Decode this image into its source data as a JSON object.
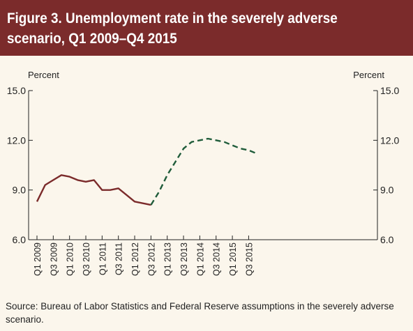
{
  "title": "Figure 3. Unemployment rate in the severely adverse scenario, Q1 2009–Q4 2015",
  "source": "Source: Bureau of Labor Statistics and Federal Reserve assumptions in the severely adverse scenario.",
  "colors": {
    "header_bg": "#7b2b2b",
    "historical": "#7b2b2b",
    "projected": "#1f5c3a",
    "background": "#fbf6ec"
  },
  "chart_data": {
    "type": "line",
    "ylabel_left": "Percent",
    "ylabel_right": "Percent",
    "ylim": [
      6.0,
      15.0
    ],
    "yticks": [
      "6.0",
      "9.0",
      "12.0",
      "15.0"
    ],
    "tick_labels": [
      "Q1 2009",
      "Q3 2009",
      "Q1 2010",
      "Q3 2010",
      "Q1 2011",
      "Q3 2011",
      "Q1 2012",
      "Q3 2012",
      "Q1 2013",
      "Q3 2013",
      "Q1 2014",
      "Q3 2014",
      "Q1 2015",
      "Q3 2015"
    ],
    "grid": false,
    "series": [
      {
        "style": "solid",
        "x": [
          "Q1 2009",
          "Q2 2009",
          "Q3 2009",
          "Q4 2009",
          "Q1 2010",
          "Q2 2010",
          "Q3 2010",
          "Q4 2010",
          "Q1 2011",
          "Q2 2011",
          "Q3 2011",
          "Q4 2011",
          "Q1 2012",
          "Q2 2012",
          "Q3 2012"
        ],
        "values": [
          8.3,
          9.3,
          9.6,
          9.9,
          9.8,
          9.6,
          9.5,
          9.6,
          9.0,
          9.0,
          9.1,
          8.7,
          8.3,
          8.2,
          8.1
        ]
      },
      {
        "style": "dashed",
        "x": [
          "Q3 2012",
          "Q4 2012",
          "Q1 2013",
          "Q2 2013",
          "Q3 2013",
          "Q4 2013",
          "Q1 2014",
          "Q2 2014",
          "Q3 2014",
          "Q4 2014",
          "Q1 2015",
          "Q2 2015",
          "Q3 2015",
          "Q4 2015"
        ],
        "values": [
          8.1,
          8.9,
          9.9,
          10.7,
          11.5,
          11.9,
          12.0,
          12.1,
          12.0,
          11.9,
          11.7,
          11.5,
          11.4,
          11.2
        ]
      }
    ]
  }
}
